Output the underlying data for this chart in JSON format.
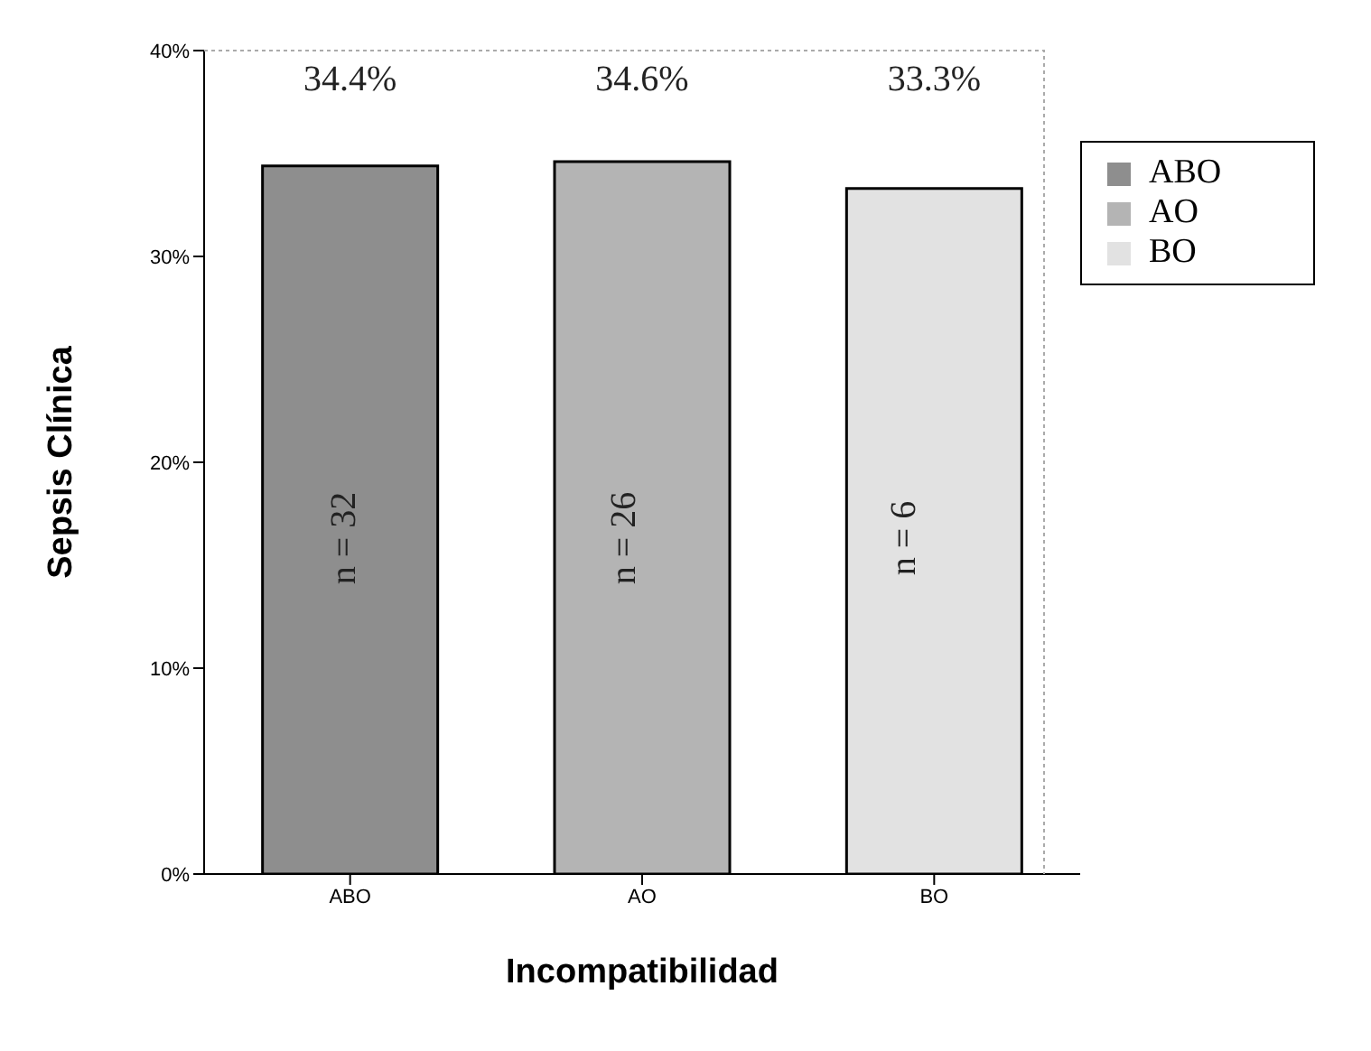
{
  "chart_data": {
    "type": "bar",
    "xlabel": "Incompatibilidad",
    "ylabel": "Sepsis Clínica",
    "categories": [
      "ABO",
      "AO",
      "BO"
    ],
    "series": [
      {
        "name": "ABO",
        "color": "#8e8e8e",
        "values": [
          34.4,
          null,
          null
        ],
        "value_labels": [
          "34.4%",
          null,
          null
        ]
      },
      {
        "name": "AO",
        "color": "#b4b4b4",
        "values": [
          null,
          34.6,
          null
        ],
        "value_labels": [
          null,
          "34.6%",
          null
        ]
      },
      {
        "name": "BO",
        "color": "#e2e2e2",
        "values": [
          null,
          null,
          33.3
        ],
        "value_labels": [
          null,
          null,
          "33.3%"
        ]
      }
    ],
    "stacked": true,
    "annotations": [
      "n = 32",
      "n = 26",
      "n = 6"
    ],
    "ylim": [
      0,
      40
    ],
    "yticks": [
      {
        "value": 0,
        "label": "0%"
      },
      {
        "value": 10,
        "label": "10%"
      },
      {
        "value": 20,
        "label": "20%"
      },
      {
        "value": 30,
        "label": "30%"
      },
      {
        "value": 40,
        "label": "40%"
      }
    ],
    "grid": false,
    "legend": "top right"
  }
}
